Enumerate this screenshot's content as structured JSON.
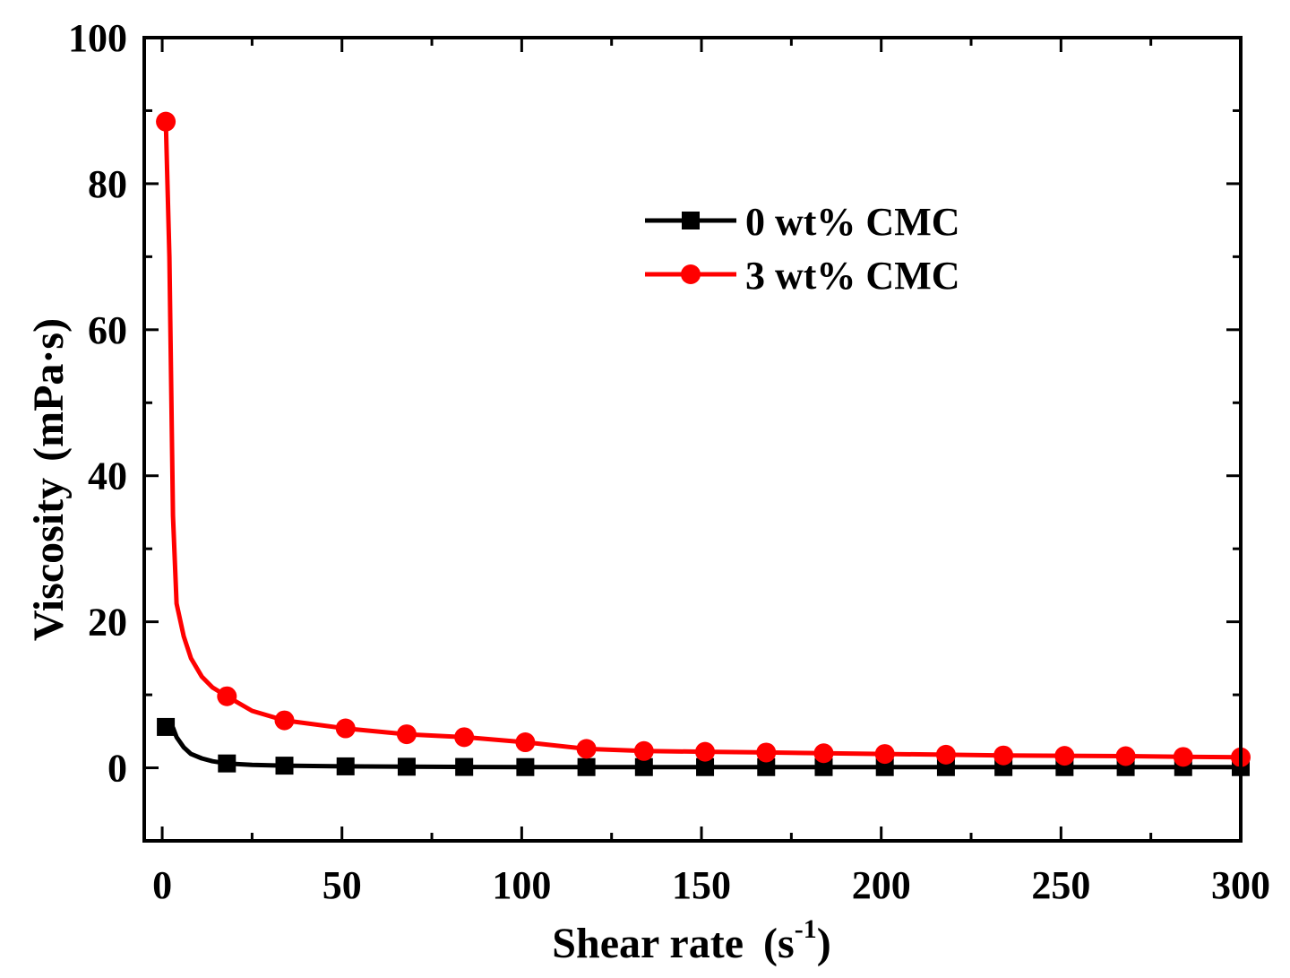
{
  "chart_data": {
    "type": "line",
    "title": "",
    "xlabel": "Shear rate",
    "xlabel_unit_open": "(s",
    "xlabel_unit_exp": "-1",
    "xlabel_unit_close": ")",
    "ylabel": "Viscosity",
    "ylabel_unit": "(mPa·s)",
    "xlim": [
      -5,
      300
    ],
    "ylim": [
      -10,
      100
    ],
    "x_ticks": [
      0,
      50,
      100,
      150,
      200,
      250,
      300
    ],
    "y_ticks": [
      0,
      20,
      40,
      60,
      80,
      100
    ],
    "x_tick_labels": [
      "0",
      "50",
      "100",
      "150",
      "200",
      "250",
      "300"
    ],
    "y_tick_labels": [
      "0",
      "20",
      "40",
      "60",
      "80",
      "100"
    ],
    "grid": false,
    "legend_position": "top-right",
    "series": [
      {
        "name": "0 wt% CMC",
        "color": "#000000",
        "marker": "square",
        "curve": [
          [
            1,
            5.6
          ],
          [
            3,
            5.5
          ],
          [
            4,
            4.2
          ],
          [
            6,
            2.8
          ],
          [
            8,
            1.9
          ],
          [
            11,
            1.3
          ],
          [
            14,
            0.9
          ],
          [
            18,
            0.6
          ],
          [
            25,
            0.4
          ],
          [
            34,
            0.3
          ],
          [
            51,
            0.2
          ],
          [
            68,
            0.15
          ],
          [
            84,
            0.12
          ],
          [
            101,
            0.1
          ],
          [
            118,
            0.1
          ],
          [
            134,
            0.1
          ],
          [
            151,
            0.1
          ],
          [
            168,
            0.1
          ],
          [
            184,
            0.1
          ],
          [
            201,
            0.1
          ],
          [
            218,
            0.1
          ],
          [
            234,
            0.1
          ],
          [
            251,
            0.1
          ],
          [
            268,
            0.1
          ],
          [
            284,
            0.1
          ],
          [
            300,
            0.1
          ]
        ],
        "markers": [
          [
            1,
            5.6
          ],
          [
            18,
            0.6
          ],
          [
            34,
            0.3
          ],
          [
            51,
            0.2
          ],
          [
            68,
            0.15
          ],
          [
            84,
            0.12
          ],
          [
            101,
            0.1
          ],
          [
            118,
            0.1
          ],
          [
            134,
            0.1
          ],
          [
            151,
            0.1
          ],
          [
            168,
            0.1
          ],
          [
            184,
            0.1
          ],
          [
            201,
            0.1
          ],
          [
            218,
            0.1
          ],
          [
            234,
            0.1
          ],
          [
            251,
            0.1
          ],
          [
            268,
            0.1
          ],
          [
            284,
            0.1
          ],
          [
            300,
            0.1
          ]
        ]
      },
      {
        "name": "3 wt% CMC",
        "color": "#ff0000",
        "marker": "circle",
        "curve": [
          [
            1,
            88.5
          ],
          [
            2,
            70
          ],
          [
            3,
            34.5
          ],
          [
            4,
            22.5
          ],
          [
            6,
            18
          ],
          [
            8,
            15
          ],
          [
            11,
            12.5
          ],
          [
            14,
            11
          ],
          [
            18,
            9.8
          ],
          [
            25,
            7.8
          ],
          [
            34,
            6.5
          ],
          [
            51,
            5.4
          ],
          [
            68,
            4.6
          ],
          [
            84,
            4.2
          ],
          [
            101,
            3.5
          ],
          [
            118,
            2.6
          ],
          [
            134,
            2.3
          ],
          [
            151,
            2.2
          ],
          [
            168,
            2.1
          ],
          [
            184,
            2.0
          ],
          [
            201,
            1.9
          ],
          [
            218,
            1.8
          ],
          [
            234,
            1.7
          ],
          [
            251,
            1.65
          ],
          [
            268,
            1.6
          ],
          [
            284,
            1.5
          ],
          [
            300,
            1.45
          ]
        ],
        "markers": [
          [
            1,
            88.5
          ],
          [
            18,
            9.8
          ],
          [
            34,
            6.5
          ],
          [
            51,
            5.4
          ],
          [
            68,
            4.6
          ],
          [
            84,
            4.2
          ],
          [
            101,
            3.5
          ],
          [
            118,
            2.6
          ],
          [
            134,
            2.3
          ],
          [
            151,
            2.2
          ],
          [
            168,
            2.1
          ],
          [
            184,
            2.0
          ],
          [
            201,
            1.9
          ],
          [
            218,
            1.8
          ],
          [
            234,
            1.7
          ],
          [
            251,
            1.65
          ],
          [
            268,
            1.6
          ],
          [
            284,
            1.5
          ],
          [
            300,
            1.45
          ]
        ]
      }
    ]
  }
}
